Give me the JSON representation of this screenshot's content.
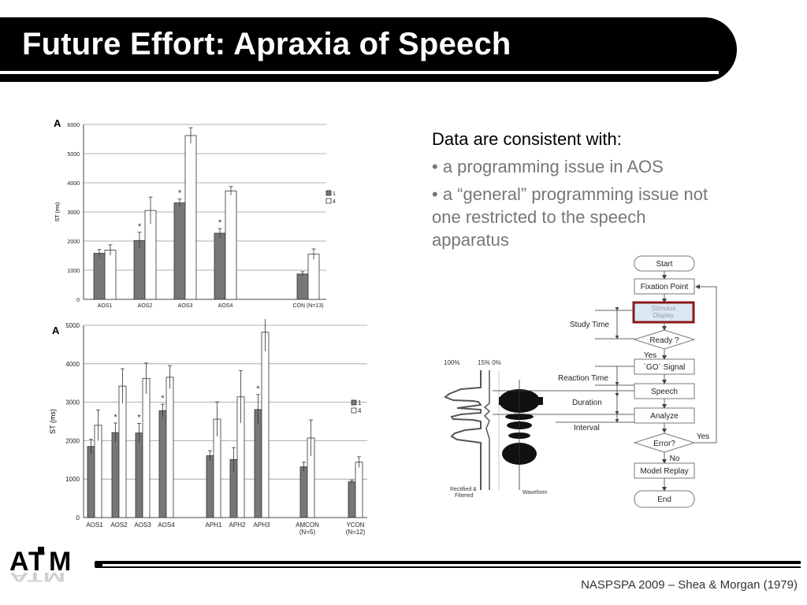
{
  "slide": {
    "title": "Future Effort: Apraxia of Speech",
    "footer": "NASPSPA 2009 – Shea & Morgan (1979)",
    "logo_text": "ATM"
  },
  "text": {
    "lead": "Data are consistent with:",
    "bullets": [
      "•   a programming issue in AOS",
      "•   a “general” programming issue not one restricted to the speech apparatus"
    ]
  },
  "chart_data": [
    {
      "type": "bar",
      "panel_label": "A",
      "ylabel": "ST (ms)",
      "ylim": [
        0,
        6000
      ],
      "yticks": [
        0,
        1000,
        2000,
        3000,
        4000,
        5000,
        6000
      ],
      "grid": true,
      "legend_position": "right",
      "categories": [
        "AOS1",
        "AOS2",
        "AOS3",
        "AOS4",
        "CON (N=13)"
      ],
      "series": [
        {
          "name": "1",
          "color": "#777777",
          "values": [
            1580,
            2020,
            3310,
            2270,
            870
          ],
          "errors": [
            130,
            280,
            130,
            160,
            80
          ]
        },
        {
          "name": "4",
          "color": "#ffffff",
          "values": [
            1690,
            3050,
            5620,
            3720,
            1550
          ],
          "errors": [
            180,
            460,
            270,
            150,
            180
          ]
        }
      ],
      "asterisks": [
        "",
        "*",
        "*",
        "*",
        ""
      ]
    },
    {
      "type": "bar",
      "panel_label": "A",
      "ylabel": "ST (ms)",
      "ylim": [
        0,
        5000
      ],
      "yticks": [
        0,
        1000,
        2000,
        3000,
        4000,
        5000
      ],
      "grid": true,
      "legend_position": "right",
      "categories": [
        "AOS1",
        "AOS2",
        "AOS3",
        "AOS4",
        "APH1",
        "APH2",
        "APH3",
        "AMCON\n(N=5)",
        "YCON\n(N=12)"
      ],
      "series": [
        {
          "name": "1",
          "color": "#777777",
          "values": [
            1850,
            2210,
            2200,
            2780,
            1610,
            1510,
            2810,
            1320,
            930
          ],
          "errors": [
            190,
            250,
            250,
            170,
            130,
            310,
            390,
            120,
            40
          ]
        },
        {
          "name": "4",
          "color": "#ffffff",
          "values": [
            2400,
            3420,
            3620,
            3650,
            2560,
            3140,
            4820,
            2070,
            1440
          ],
          "errors": [
            400,
            450,
            400,
            300,
            450,
            680,
            500,
            470,
            140
          ]
        }
      ],
      "asterisks": [
        "",
        "*",
        "*",
        "*",
        "",
        "",
        "*",
        "",
        ""
      ]
    }
  ],
  "flowchart": {
    "nodes": {
      "start": "Start",
      "fixation": "Fixation Point",
      "stimulus": "Stimulus Display",
      "ready": "Ready ?",
      "go": "`GO` Signal",
      "speech": "Speech",
      "analyze": "Analyze",
      "error": "Error?",
      "replay": "Model Replay",
      "end": "End"
    },
    "edges": {
      "yes1": "Yes",
      "yes2": "Yes",
      "no": "No"
    },
    "intervals": {
      "study": "Study Time",
      "reaction": "Reaction Time",
      "duration": "Duration",
      "interval": "Interval"
    },
    "waveform": {
      "pct100": "100%",
      "pct15": "15% 0%",
      "rectified": "Rectified & Filtered",
      "waveform": "Waveform"
    },
    "colors": {
      "stimulus_border": "#8b1a1a",
      "stimulus_fill": "#dbe8f2"
    }
  }
}
